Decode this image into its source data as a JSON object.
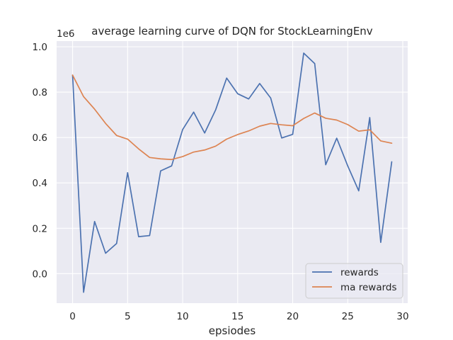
{
  "chart_data": {
    "type": "line",
    "title": "average learning curve of DQN for StockLearningEnv",
    "xlabel": "epsiodes",
    "ylabel": "",
    "y_offset_label": "1e6",
    "xlim": [
      -1.45,
      30.45
    ],
    "ylim": [
      -0.13,
      1.025
    ],
    "x_ticks": [
      0,
      5,
      10,
      15,
      20,
      25,
      30
    ],
    "x_tick_labels": [
      "0",
      "5",
      "10",
      "15",
      "20",
      "25",
      "30"
    ],
    "y_ticks": [
      0.0,
      0.2,
      0.4,
      0.6,
      0.8,
      1.0
    ],
    "y_tick_labels": [
      "0.0",
      "0.2",
      "0.4",
      "0.6",
      "0.8",
      "1.0"
    ],
    "grid": true,
    "legend_position": "lower-right",
    "x": [
      0,
      1,
      2,
      3,
      4,
      5,
      6,
      7,
      8,
      9,
      10,
      11,
      12,
      13,
      14,
      15,
      16,
      17,
      18,
      19,
      20,
      21,
      22,
      23,
      24,
      25,
      26,
      27,
      28,
      29
    ],
    "series": [
      {
        "name": "rewards",
        "color": "#4c72b0",
        "values": [
          0.875,
          -0.082,
          0.23,
          0.09,
          0.133,
          0.445,
          0.163,
          0.168,
          0.453,
          0.475,
          0.635,
          0.712,
          0.62,
          0.722,
          0.862,
          0.793,
          0.77,
          0.838,
          0.774,
          0.598,
          0.614,
          0.972,
          0.926,
          0.48,
          0.597,
          0.475,
          0.365,
          0.688,
          0.138,
          0.493
        ]
      },
      {
        "name": "ma rewards",
        "color": "#dd8452",
        "values": [
          0.875,
          0.78,
          0.725,
          0.662,
          0.609,
          0.593,
          0.55,
          0.512,
          0.506,
          0.503,
          0.516,
          0.536,
          0.545,
          0.562,
          0.593,
          0.613,
          0.629,
          0.65,
          0.662,
          0.656,
          0.652,
          0.684,
          0.708,
          0.685,
          0.677,
          0.657,
          0.628,
          0.634,
          0.585,
          0.575
        ]
      }
    ]
  }
}
